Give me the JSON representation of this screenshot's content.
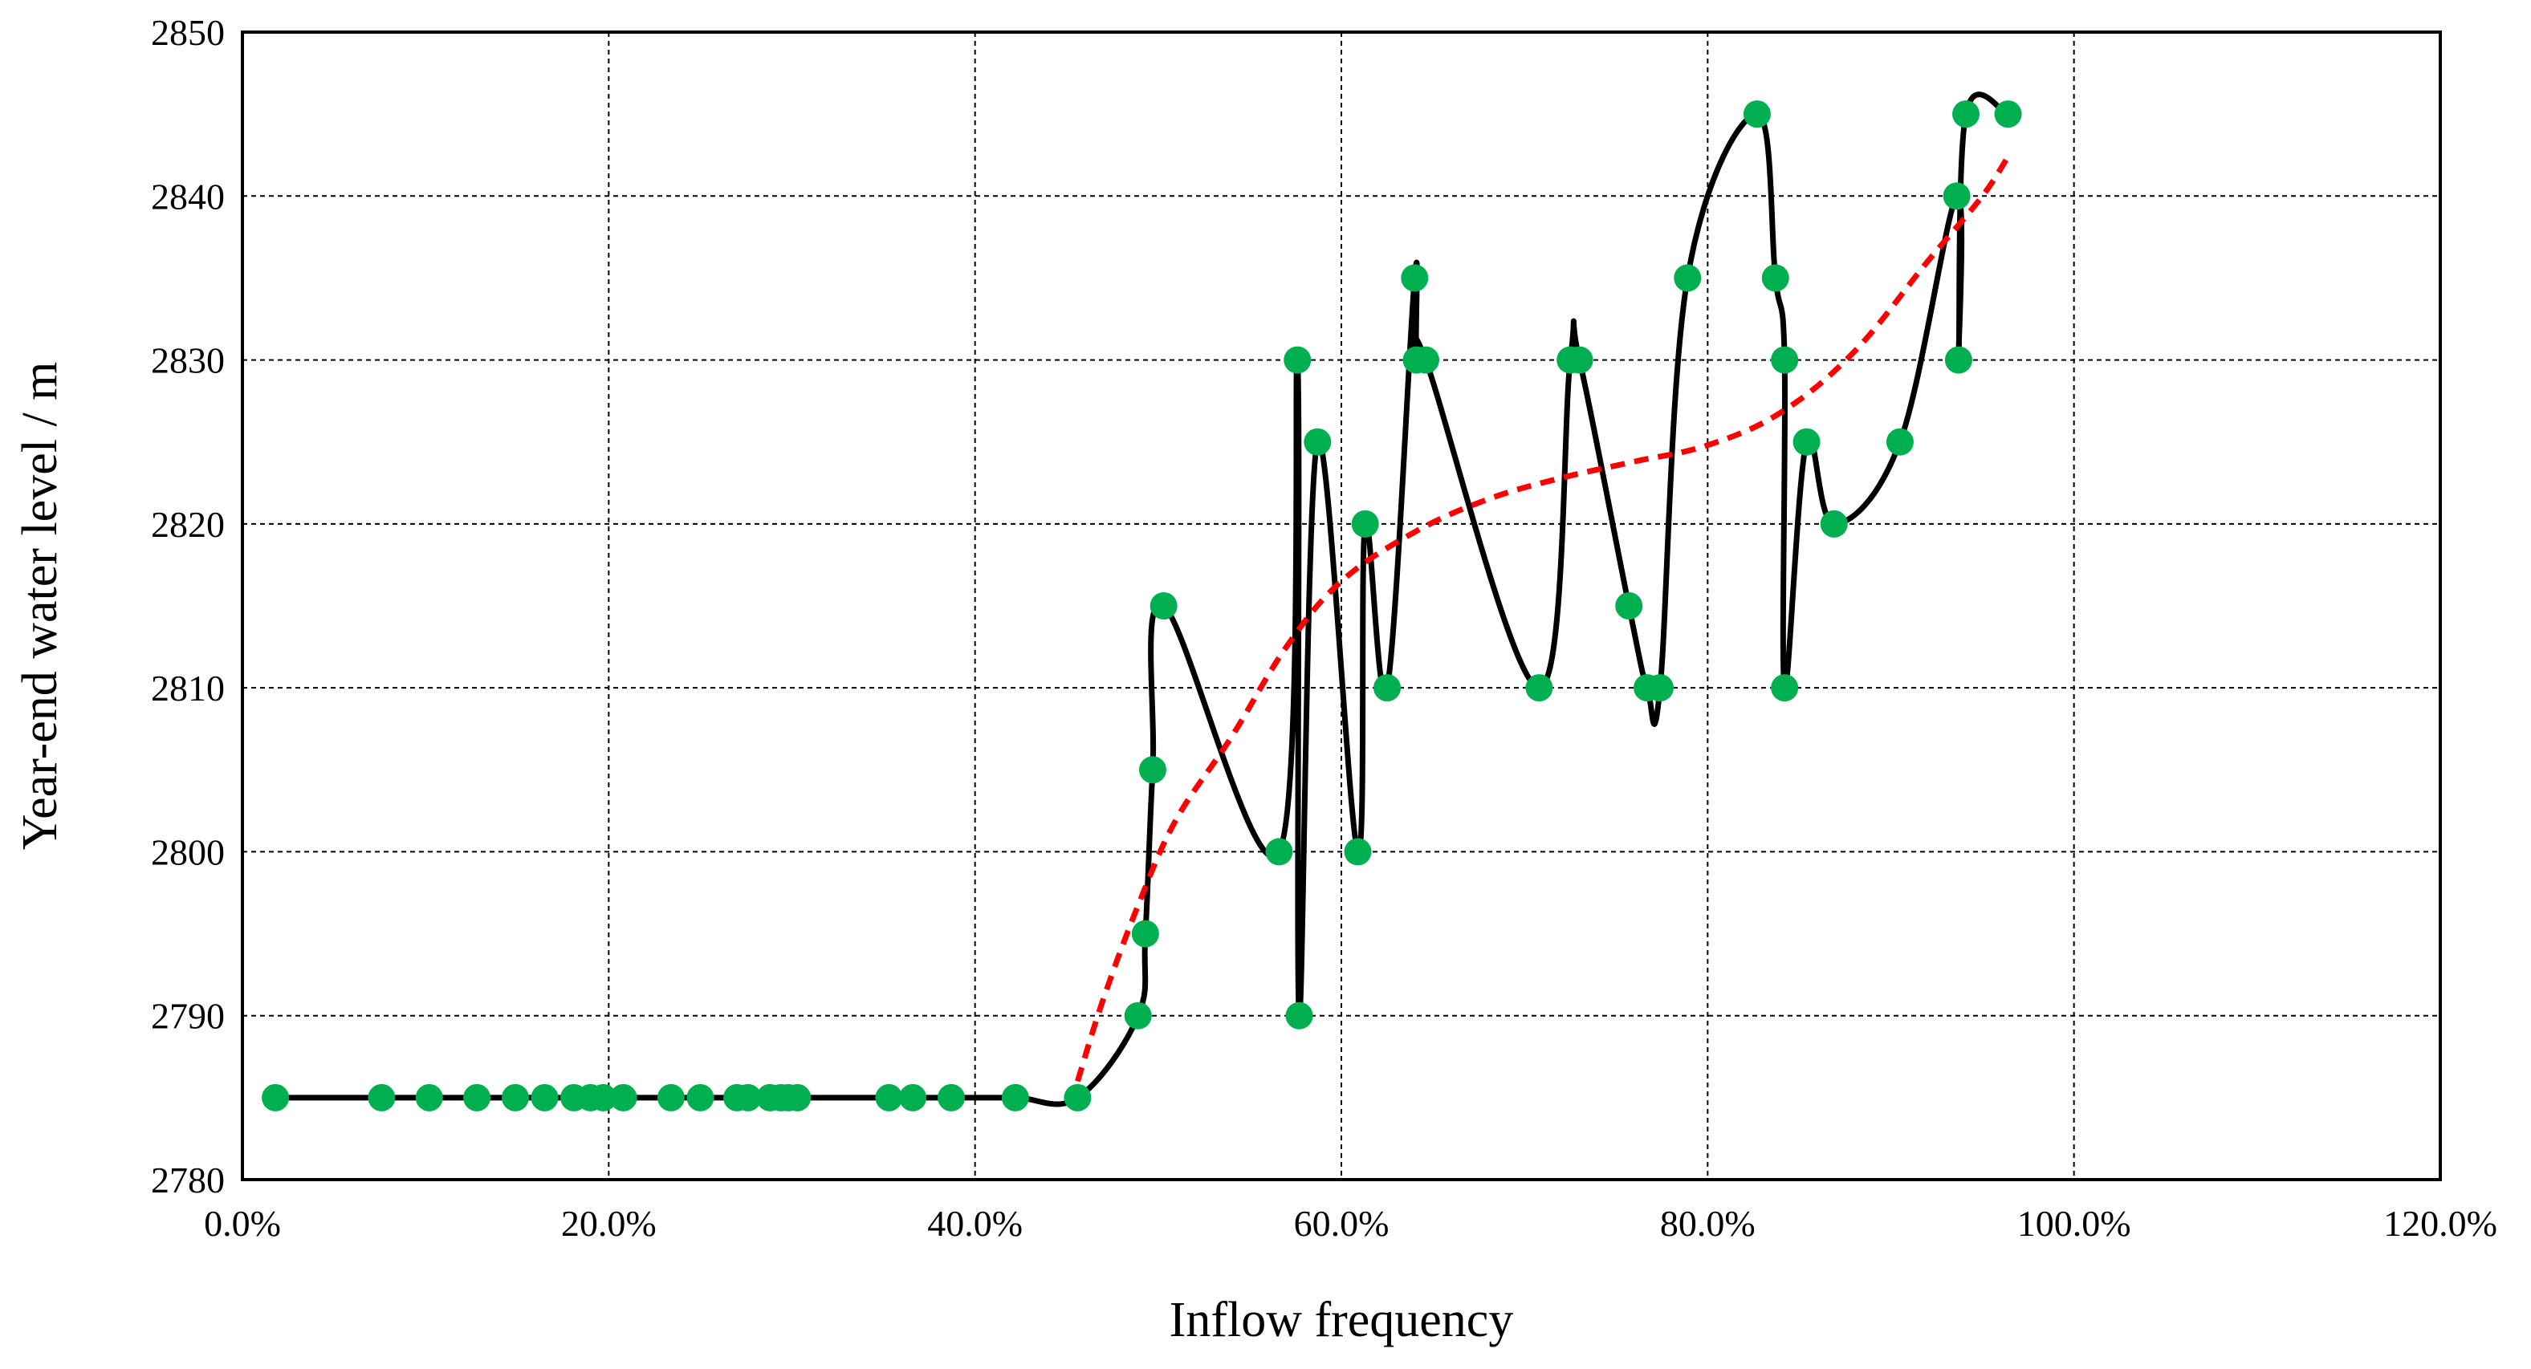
{
  "chart_data": {
    "type": "scatter",
    "xlabel": "Inflow frequency",
    "ylabel": "Year-end water level / m",
    "xlim": [
      0,
      1.2
    ],
    "ylim": [
      2780,
      2850
    ],
    "x_ticks": [
      0,
      0.2,
      0.4,
      0.6,
      0.8,
      1.0,
      1.2
    ],
    "x_tick_labels": [
      "0.0%",
      "20.0%",
      "40.0%",
      "60.0%",
      "80.0%",
      "100.0%",
      "120.0%"
    ],
    "y_ticks": [
      2780,
      2790,
      2800,
      2810,
      2820,
      2830,
      2840,
      2850
    ],
    "y_tick_labels": [
      "2780",
      "2790",
      "2800",
      "2810",
      "2820",
      "2830",
      "2840",
      "2850"
    ],
    "grid": true,
    "legend": "none",
    "series": [
      {
        "style": "smoothed line with circular markers",
        "line_color": "#000000",
        "marker_color": "#00b050",
        "points": [
          [
            0.018,
            2785
          ],
          [
            0.076,
            2785
          ],
          [
            0.102,
            2785
          ],
          [
            0.128,
            2785
          ],
          [
            0.149,
            2785
          ],
          [
            0.165,
            2785
          ],
          [
            0.181,
            2785
          ],
          [
            0.19,
            2785
          ],
          [
            0.197,
            2785
          ],
          [
            0.208,
            2785
          ],
          [
            0.234,
            2785
          ],
          [
            0.25,
            2785
          ],
          [
            0.27,
            2785
          ],
          [
            0.276,
            2785
          ],
          [
            0.288,
            2785
          ],
          [
            0.294,
            2785
          ],
          [
            0.298,
            2785
          ],
          [
            0.303,
            2785
          ],
          [
            0.353,
            2785
          ],
          [
            0.366,
            2785
          ],
          [
            0.387,
            2785
          ],
          [
            0.422,
            2785
          ],
          [
            0.456,
            2785
          ],
          [
            0.489,
            2790
          ],
          [
            0.493,
            2795
          ],
          [
            0.497,
            2805
          ],
          [
            0.503,
            2815
          ],
          [
            0.566,
            2800
          ],
          [
            0.576,
            2830
          ],
          [
            0.577,
            2790
          ],
          [
            0.587,
            2825
          ],
          [
            0.609,
            2800
          ],
          [
            0.613,
            2820
          ],
          [
            0.625,
            2810
          ],
          [
            0.64,
            2835
          ],
          [
            0.641,
            2830
          ],
          [
            0.646,
            2830
          ],
          [
            0.708,
            2810
          ],
          [
            0.725,
            2830
          ],
          [
            0.73,
            2830
          ],
          [
            0.757,
            2815
          ],
          [
            0.767,
            2810
          ],
          [
            0.774,
            2810
          ],
          [
            0.789,
            2835
          ],
          [
            0.827,
            2845
          ],
          [
            0.837,
            2835
          ],
          [
            0.842,
            2830
          ],
          [
            0.842,
            2810
          ],
          [
            0.854,
            2825
          ],
          [
            0.869,
            2820
          ],
          [
            0.905,
            2825
          ],
          [
            0.936,
            2840
          ],
          [
            0.937,
            2830
          ],
          [
            0.941,
            2845
          ],
          [
            0.964,
            2845
          ]
        ]
      },
      {
        "style": "dashed trend curve",
        "line_color": "#ff0000",
        "points": [
          [
            0.456,
            2786
          ],
          [
            0.47,
            2791
          ],
          [
            0.49,
            2797
          ],
          [
            0.51,
            2802
          ],
          [
            0.54,
            2807
          ],
          [
            0.57,
            2812.5
          ],
          [
            0.6,
            2816.5
          ],
          [
            0.64,
            2819.5
          ],
          [
            0.68,
            2821.5
          ],
          [
            0.72,
            2822.8
          ],
          [
            0.76,
            2823.8
          ],
          [
            0.8,
            2824.8
          ],
          [
            0.84,
            2826.8
          ],
          [
            0.88,
            2830.5
          ],
          [
            0.92,
            2836
          ],
          [
            0.95,
            2840
          ],
          [
            0.965,
            2842.6
          ]
        ]
      }
    ]
  }
}
